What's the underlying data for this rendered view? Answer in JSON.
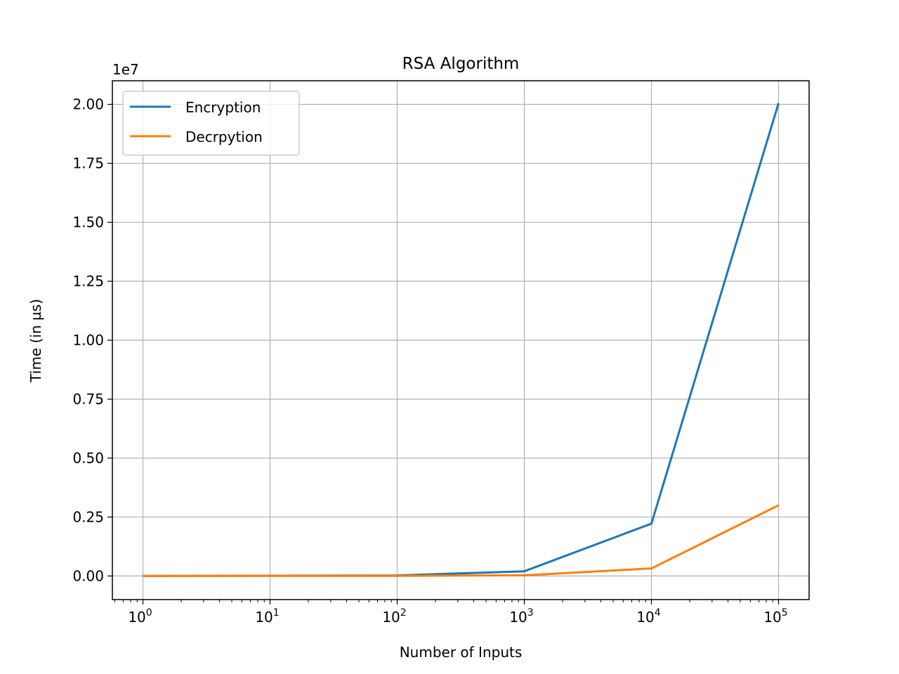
{
  "chart_data": {
    "type": "line",
    "title": "RSA Algorithm",
    "xlabel": "Number of Inputs",
    "ylabel": "Time (in µs)",
    "x_scale": "log",
    "x": [
      1,
      10,
      100,
      1000,
      10000,
      100000
    ],
    "xlim": [
      0.575,
      173900
    ],
    "ylim": [
      -1000000,
      21000000
    ],
    "y_offset_label": "1e7",
    "x_ticks": [
      {
        "value": 1,
        "base": "10",
        "exp": "0"
      },
      {
        "value": 10,
        "base": "10",
        "exp": "1"
      },
      {
        "value": 100,
        "base": "10",
        "exp": "2"
      },
      {
        "value": 1000,
        "base": "10",
        "exp": "3"
      },
      {
        "value": 10000,
        "base": "10",
        "exp": "4"
      },
      {
        "value": 100000,
        "base": "10",
        "exp": "5"
      }
    ],
    "y_ticks": [
      {
        "value": 0,
        "label": "0.00"
      },
      {
        "value": 2500000,
        "label": "0.25"
      },
      {
        "value": 5000000,
        "label": "0.50"
      },
      {
        "value": 7500000,
        "label": "0.75"
      },
      {
        "value": 10000000,
        "label": "1.00"
      },
      {
        "value": 12500000,
        "label": "1.25"
      },
      {
        "value": 15000000,
        "label": "1.50"
      },
      {
        "value": 17500000,
        "label": "1.75"
      },
      {
        "value": 20000000,
        "label": "2.00"
      }
    ],
    "grid": true,
    "legend_position": "upper-left",
    "series": [
      {
        "name": "Encryption",
        "color": "#1f77b4",
        "values": [
          2000,
          12000,
          25000,
          200000,
          2220000,
          20050000
        ]
      },
      {
        "name": "Decrpytion",
        "color": "#ff7f0e",
        "values": [
          1000,
          3000,
          5000,
          30000,
          320000,
          3000000
        ]
      }
    ]
  }
}
